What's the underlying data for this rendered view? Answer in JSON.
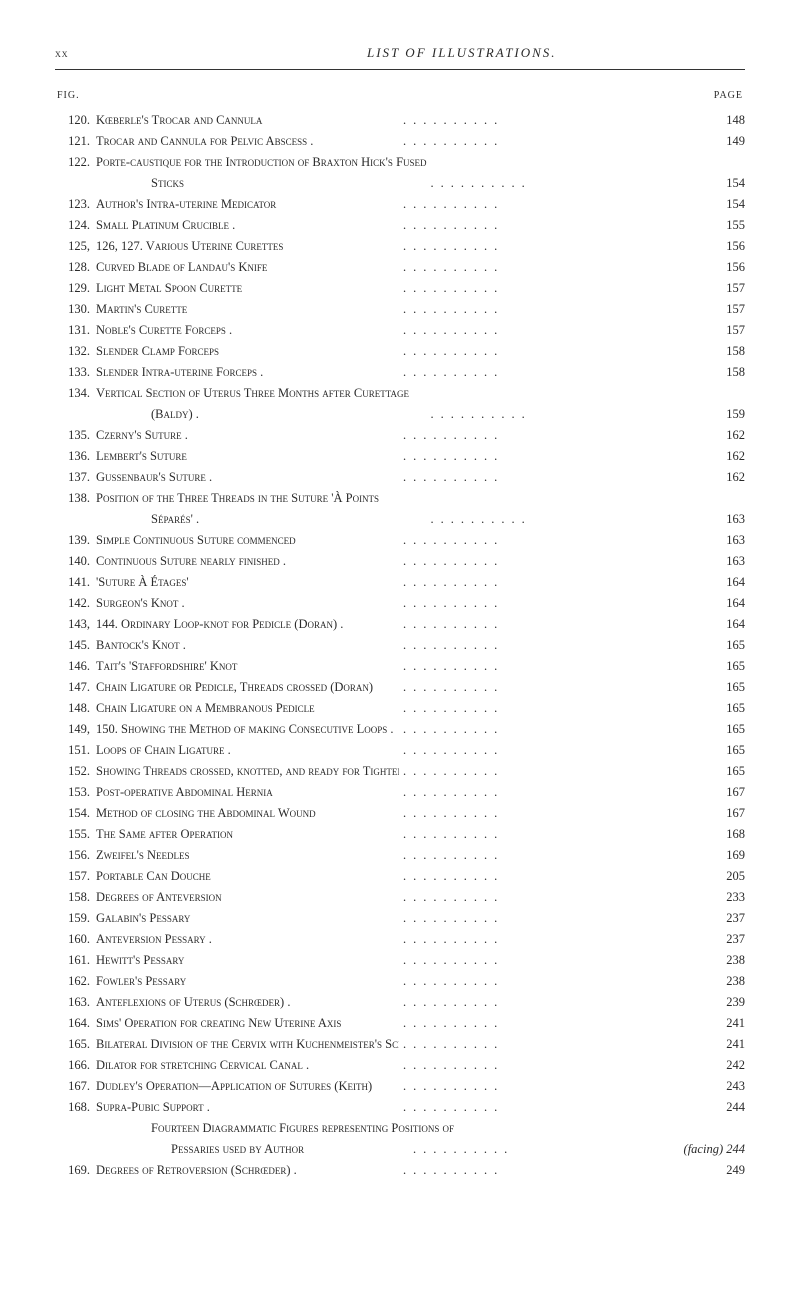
{
  "header": {
    "roman": "xx",
    "title": "LIST OF ILLUSTRATIONS."
  },
  "subheader": {
    "left": "FIG.",
    "right": "PAGE"
  },
  "entries": [
    {
      "num": "120.",
      "text": "Kœberle's Trocar and Cannula",
      "page": "148"
    },
    {
      "num": "121.",
      "text": "Trocar and Cannula for Pelvic Abscess .",
      "page": "149"
    },
    {
      "num": "122.",
      "text": "Porte-caustique for the Introduction of Braxton Hick's Fused",
      "page": ""
    },
    {
      "num": "",
      "text": "Sticks",
      "page": "154",
      "indent": true
    },
    {
      "num": "123.",
      "text": "Author's Intra-uterine Medicator",
      "page": "154"
    },
    {
      "num": "124.",
      "text": "Small Platinum Crucible .",
      "page": "155"
    },
    {
      "num": "125,",
      "text": "126, 127. Various Uterine Curettes",
      "page": "156"
    },
    {
      "num": "128.",
      "text": "Curved Blade of Landau's Knife",
      "page": "156"
    },
    {
      "num": "129.",
      "text": "Light Metal Spoon Curette",
      "page": "157"
    },
    {
      "num": "130.",
      "text": "Martin's Curette",
      "page": "157"
    },
    {
      "num": "131.",
      "text": "Noble's Curette Forceps .",
      "page": "157"
    },
    {
      "num": "132.",
      "text": "Slender Clamp Forceps",
      "page": "158"
    },
    {
      "num": "133.",
      "text": "Slender Intra-uterine Forceps .",
      "page": "158"
    },
    {
      "num": "134.",
      "text": "Vertical Section of Uterus Three Months after Curettage",
      "page": ""
    },
    {
      "num": "",
      "text": "(Baldy) .",
      "page": "159",
      "indent": true
    },
    {
      "num": "135.",
      "text": "Czerny's Suture .",
      "page": "162"
    },
    {
      "num": "136.",
      "text": "Lembert's Suture",
      "page": "162"
    },
    {
      "num": "137.",
      "text": "Gussenbaur's Suture .",
      "page": "162"
    },
    {
      "num": "138.",
      "text": "Position of the Three Threads in the Suture 'À Points",
      "page": ""
    },
    {
      "num": "",
      "text": "Séparés' .",
      "page": "163",
      "indent": true
    },
    {
      "num": "139.",
      "text": "Simple Continuous Suture commenced",
      "page": "163"
    },
    {
      "num": "140.",
      "text": "Continuous Suture nearly finished .",
      "page": "163"
    },
    {
      "num": "141.",
      "text": "'Suture À Étages'",
      "page": "164"
    },
    {
      "num": "142.",
      "text": "Surgeon's Knot .",
      "page": "164"
    },
    {
      "num": "143,",
      "text": "144. Ordinary Loop-knot for Pedicle (Doran) .",
      "page": "164"
    },
    {
      "num": "145.",
      "text": "Bantock's Knot .",
      "page": "165"
    },
    {
      "num": "146.",
      "text": "Tait's 'Staffordshire' Knot",
      "page": "165"
    },
    {
      "num": "147.",
      "text": "Chain Ligature or Pedicle, Threads crossed (Doran)",
      "page": "165"
    },
    {
      "num": "148.",
      "text": "Chain Ligature on a Membranous Pedicle",
      "page": "165"
    },
    {
      "num": "149,",
      "text": "150. Showing the Method of making Consecutive Loops .",
      "page": "165"
    },
    {
      "num": "151.",
      "text": "Loops of Chain Ligature .",
      "page": "165"
    },
    {
      "num": "152.",
      "text": "Showing Threads crossed, knotted, and ready for Tightening",
      "page": "165"
    },
    {
      "num": "153.",
      "text": "Post-operative Abdominal Hernia",
      "page": "167"
    },
    {
      "num": "154.",
      "text": "Method of closing the Abdominal Wound",
      "page": "167"
    },
    {
      "num": "155.",
      "text": "The Same after Operation",
      "page": "168"
    },
    {
      "num": "156.",
      "text": "Zweifel's Needles",
      "page": "169"
    },
    {
      "num": "157.",
      "text": "Portable Can Douche",
      "page": "205"
    },
    {
      "num": "158.",
      "text": "Degrees of Anteversion",
      "page": "233"
    },
    {
      "num": "159.",
      "text": "Galabin's Pessary",
      "page": "237"
    },
    {
      "num": "160.",
      "text": "Anteversion Pessary .",
      "page": "237"
    },
    {
      "num": "161.",
      "text": "Hewitt's Pessary",
      "page": "238"
    },
    {
      "num": "162.",
      "text": "Fowler's Pessary",
      "page": "238"
    },
    {
      "num": "163.",
      "text": "Anteflexions of Uterus (Schrœder) .",
      "page": "239"
    },
    {
      "num": "164.",
      "text": "Sims' Operation for creating New Uterine Axis",
      "page": "241"
    },
    {
      "num": "165.",
      "text": "Bilateral Division of the Cervix with Kuchenmeister's Scissors",
      "page": "241"
    },
    {
      "num": "166.",
      "text": "Dilator for stretching Cervical Canal .",
      "page": "242"
    },
    {
      "num": "167.",
      "text": "Dudley's Operation—Application of Sutures (Keith)",
      "page": "243"
    },
    {
      "num": "168.",
      "text": "Supra-Pubic Support .",
      "page": "244"
    },
    {
      "num": "",
      "text": "Fourteen Diagrammatic Figures representing Positions of",
      "page": "",
      "indent": true
    },
    {
      "num": "",
      "text": "Pessaries used by Author",
      "page": "(facing) 244",
      "indent2": true
    },
    {
      "num": "169.",
      "text": "Degrees of Retroversion (Schrœder) .",
      "page": "249"
    }
  ]
}
